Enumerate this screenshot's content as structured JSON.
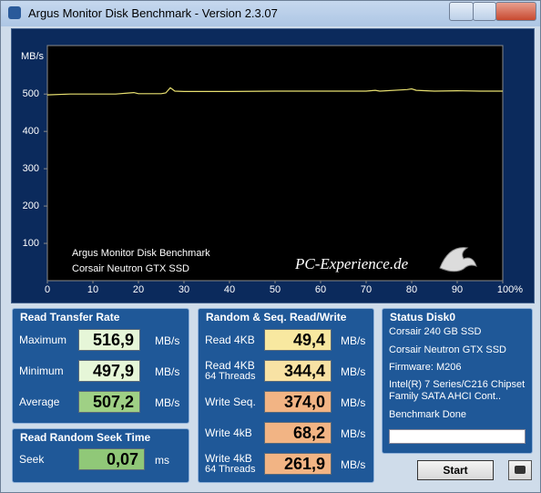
{
  "window": {
    "title": "Argus Monitor Disk Benchmark - Version 2.3.07"
  },
  "chart_data": {
    "type": "line",
    "y_label": "MB/s",
    "annotations": [
      "Argus Monitor Disk Benchmark",
      "Corsair Neutron GTX SSD"
    ],
    "watermark": "PC-Experience.de",
    "x": [
      0,
      5,
      10,
      15,
      18,
      19,
      20,
      25,
      26,
      27,
      28,
      30,
      40,
      50,
      60,
      70,
      72,
      73,
      79,
      80,
      81,
      85,
      90,
      95,
      100
    ],
    "values": [
      497.9,
      500,
      500,
      500,
      503,
      504,
      501,
      501,
      503,
      516.9,
      508,
      507,
      507,
      508,
      508,
      508,
      510,
      508,
      512,
      514,
      510,
      508,
      509,
      508,
      508
    ],
    "color": "#e8e070",
    "xlim": [
      0,
      100
    ],
    "xticks": [
      0,
      10,
      20,
      30,
      40,
      50,
      60,
      70,
      80,
      90,
      {
        "value": 100,
        "label": "100%"
      }
    ],
    "ylim": [
      0,
      630
    ],
    "yticks": [
      100,
      200,
      300,
      400,
      500
    ],
    "grid": false
  },
  "read_transfer_rate": {
    "title": "Read Transfer Rate",
    "rows": [
      {
        "label": "Maximum",
        "value": "516,9",
        "unit": "MB/s"
      },
      {
        "label": "Minimum",
        "value": "497,9",
        "unit": "MB/s"
      },
      {
        "label": "Average",
        "value": "507,2",
        "unit": "MB/s"
      }
    ]
  },
  "seek_time": {
    "title": "Read Random Seek Time",
    "rows": [
      {
        "label": "Seek",
        "value": "0,07",
        "unit": "ms"
      }
    ]
  },
  "random_seq": {
    "title": "Random & Seq. Read/Write",
    "rows": [
      {
        "label": "Read 4KB",
        "value": "49,4",
        "unit": "MB/s"
      },
      {
        "label": "Read 4KB",
        "sublabel": "64 Threads",
        "value": "344,4",
        "unit": "MB/s"
      },
      {
        "label": "Write Seq.",
        "value": "374,0",
        "unit": "MB/s"
      },
      {
        "label": "Write 4kB",
        "value": "68,2",
        "unit": "MB/s"
      },
      {
        "label": "Write 4kB",
        "sublabel": "64 Threads",
        "value": "261,9",
        "unit": "MB/s"
      }
    ]
  },
  "status": {
    "title": "Status Disk0",
    "lines": [
      "Corsair 240 GB SSD",
      "Corsair Neutron GTX SSD",
      "Firmware: M206",
      "Intel(R) 7 Series/C216 Chipset Family SATA AHCI Cont..",
      "Benchmark Done"
    ]
  },
  "buttons": {
    "start": "Start"
  }
}
